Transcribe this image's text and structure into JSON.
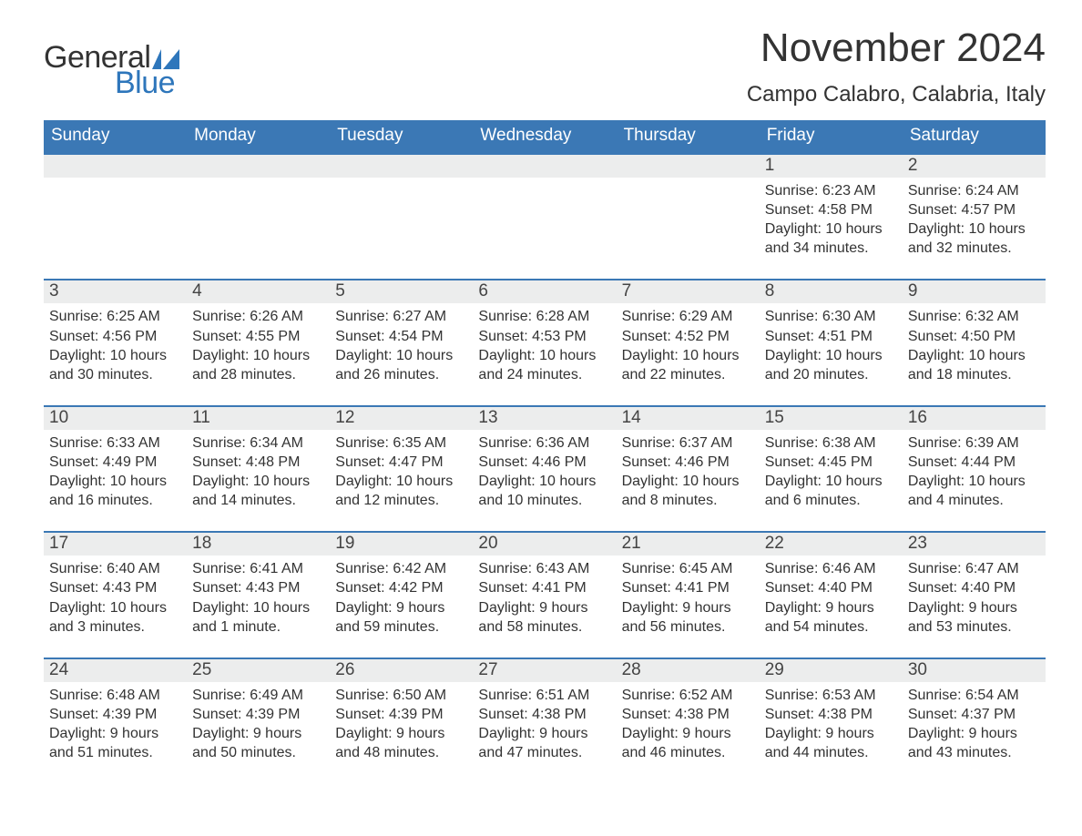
{
  "colors": {
    "header_bg": "#3b78b5",
    "header_text": "#ffffff",
    "daynum_bg": "#eceded",
    "day_border": "#3b78b5",
    "logo_blue": "#2e76bb",
    "body_text": "#333333",
    "page_bg": "#ffffff"
  },
  "logo": {
    "line1": "General",
    "line2": "Blue"
  },
  "title": "November 2024",
  "location": "Campo Calabro, Calabria, Italy",
  "dow": [
    "Sunday",
    "Monday",
    "Tuesday",
    "Wednesday",
    "Thursday",
    "Friday",
    "Saturday"
  ],
  "weeks": [
    [
      null,
      null,
      null,
      null,
      null,
      {
        "n": "1",
        "sr": "Sunrise: 6:23 AM",
        "ss": "Sunset: 4:58 PM",
        "d1": "Daylight: 10 hours",
        "d2": "and 34 minutes."
      },
      {
        "n": "2",
        "sr": "Sunrise: 6:24 AM",
        "ss": "Sunset: 4:57 PM",
        "d1": "Daylight: 10 hours",
        "d2": "and 32 minutes."
      }
    ],
    [
      {
        "n": "3",
        "sr": "Sunrise: 6:25 AM",
        "ss": "Sunset: 4:56 PM",
        "d1": "Daylight: 10 hours",
        "d2": "and 30 minutes."
      },
      {
        "n": "4",
        "sr": "Sunrise: 6:26 AM",
        "ss": "Sunset: 4:55 PM",
        "d1": "Daylight: 10 hours",
        "d2": "and 28 minutes."
      },
      {
        "n": "5",
        "sr": "Sunrise: 6:27 AM",
        "ss": "Sunset: 4:54 PM",
        "d1": "Daylight: 10 hours",
        "d2": "and 26 minutes."
      },
      {
        "n": "6",
        "sr": "Sunrise: 6:28 AM",
        "ss": "Sunset: 4:53 PM",
        "d1": "Daylight: 10 hours",
        "d2": "and 24 minutes."
      },
      {
        "n": "7",
        "sr": "Sunrise: 6:29 AM",
        "ss": "Sunset: 4:52 PM",
        "d1": "Daylight: 10 hours",
        "d2": "and 22 minutes."
      },
      {
        "n": "8",
        "sr": "Sunrise: 6:30 AM",
        "ss": "Sunset: 4:51 PM",
        "d1": "Daylight: 10 hours",
        "d2": "and 20 minutes."
      },
      {
        "n": "9",
        "sr": "Sunrise: 6:32 AM",
        "ss": "Sunset: 4:50 PM",
        "d1": "Daylight: 10 hours",
        "d2": "and 18 minutes."
      }
    ],
    [
      {
        "n": "10",
        "sr": "Sunrise: 6:33 AM",
        "ss": "Sunset: 4:49 PM",
        "d1": "Daylight: 10 hours",
        "d2": "and 16 minutes."
      },
      {
        "n": "11",
        "sr": "Sunrise: 6:34 AM",
        "ss": "Sunset: 4:48 PM",
        "d1": "Daylight: 10 hours",
        "d2": "and 14 minutes."
      },
      {
        "n": "12",
        "sr": "Sunrise: 6:35 AM",
        "ss": "Sunset: 4:47 PM",
        "d1": "Daylight: 10 hours",
        "d2": "and 12 minutes."
      },
      {
        "n": "13",
        "sr": "Sunrise: 6:36 AM",
        "ss": "Sunset: 4:46 PM",
        "d1": "Daylight: 10 hours",
        "d2": "and 10 minutes."
      },
      {
        "n": "14",
        "sr": "Sunrise: 6:37 AM",
        "ss": "Sunset: 4:46 PM",
        "d1": "Daylight: 10 hours",
        "d2": "and 8 minutes."
      },
      {
        "n": "15",
        "sr": "Sunrise: 6:38 AM",
        "ss": "Sunset: 4:45 PM",
        "d1": "Daylight: 10 hours",
        "d2": "and 6 minutes."
      },
      {
        "n": "16",
        "sr": "Sunrise: 6:39 AM",
        "ss": "Sunset: 4:44 PM",
        "d1": "Daylight: 10 hours",
        "d2": "and 4 minutes."
      }
    ],
    [
      {
        "n": "17",
        "sr": "Sunrise: 6:40 AM",
        "ss": "Sunset: 4:43 PM",
        "d1": "Daylight: 10 hours",
        "d2": "and 3 minutes."
      },
      {
        "n": "18",
        "sr": "Sunrise: 6:41 AM",
        "ss": "Sunset: 4:43 PM",
        "d1": "Daylight: 10 hours",
        "d2": "and 1 minute."
      },
      {
        "n": "19",
        "sr": "Sunrise: 6:42 AM",
        "ss": "Sunset: 4:42 PM",
        "d1": "Daylight: 9 hours",
        "d2": "and 59 minutes."
      },
      {
        "n": "20",
        "sr": "Sunrise: 6:43 AM",
        "ss": "Sunset: 4:41 PM",
        "d1": "Daylight: 9 hours",
        "d2": "and 58 minutes."
      },
      {
        "n": "21",
        "sr": "Sunrise: 6:45 AM",
        "ss": "Sunset: 4:41 PM",
        "d1": "Daylight: 9 hours",
        "d2": "and 56 minutes."
      },
      {
        "n": "22",
        "sr": "Sunrise: 6:46 AM",
        "ss": "Sunset: 4:40 PM",
        "d1": "Daylight: 9 hours",
        "d2": "and 54 minutes."
      },
      {
        "n": "23",
        "sr": "Sunrise: 6:47 AM",
        "ss": "Sunset: 4:40 PM",
        "d1": "Daylight: 9 hours",
        "d2": "and 53 minutes."
      }
    ],
    [
      {
        "n": "24",
        "sr": "Sunrise: 6:48 AM",
        "ss": "Sunset: 4:39 PM",
        "d1": "Daylight: 9 hours",
        "d2": "and 51 minutes."
      },
      {
        "n": "25",
        "sr": "Sunrise: 6:49 AM",
        "ss": "Sunset: 4:39 PM",
        "d1": "Daylight: 9 hours",
        "d2": "and 50 minutes."
      },
      {
        "n": "26",
        "sr": "Sunrise: 6:50 AM",
        "ss": "Sunset: 4:39 PM",
        "d1": "Daylight: 9 hours",
        "d2": "and 48 minutes."
      },
      {
        "n": "27",
        "sr": "Sunrise: 6:51 AM",
        "ss": "Sunset: 4:38 PM",
        "d1": "Daylight: 9 hours",
        "d2": "and 47 minutes."
      },
      {
        "n": "28",
        "sr": "Sunrise: 6:52 AM",
        "ss": "Sunset: 4:38 PM",
        "d1": "Daylight: 9 hours",
        "d2": "and 46 minutes."
      },
      {
        "n": "29",
        "sr": "Sunrise: 6:53 AM",
        "ss": "Sunset: 4:38 PM",
        "d1": "Daylight: 9 hours",
        "d2": "and 44 minutes."
      },
      {
        "n": "30",
        "sr": "Sunrise: 6:54 AM",
        "ss": "Sunset: 4:37 PM",
        "d1": "Daylight: 9 hours",
        "d2": "and 43 minutes."
      }
    ]
  ]
}
